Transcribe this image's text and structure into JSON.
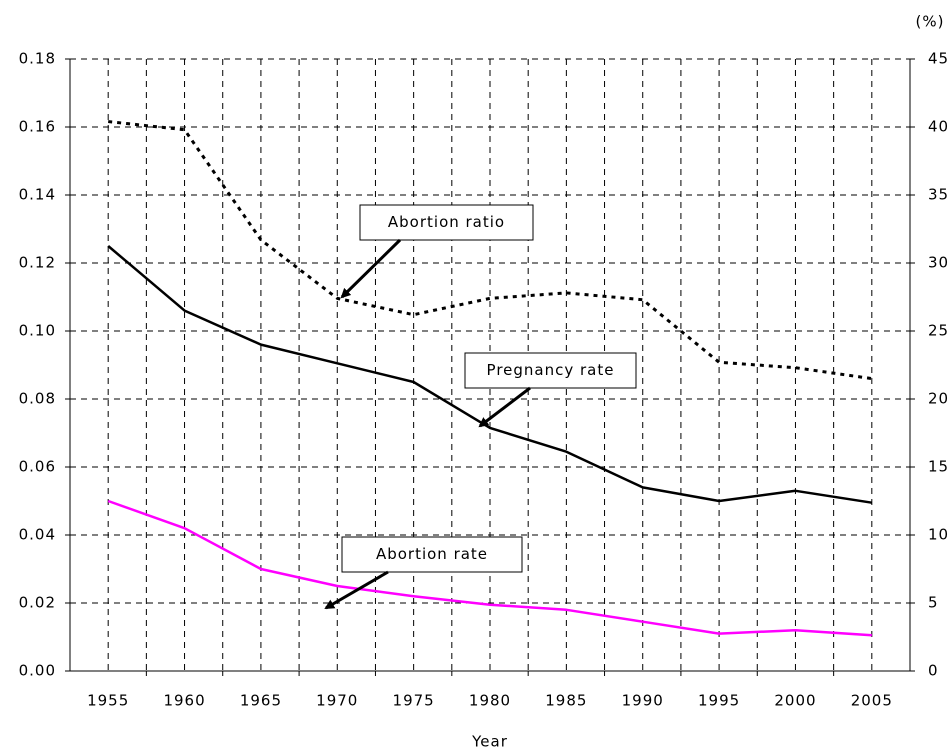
{
  "chart_data": {
    "type": "line",
    "x_label": "Year",
    "y2_label": "(%)",
    "categories": [
      "1955",
      "1960",
      "1965",
      "1970",
      "1975",
      "1980",
      "1985",
      "1990",
      "1995",
      "2000",
      "2005"
    ],
    "series": [
      {
        "name": "Pregnancy rate",
        "color": "#000000",
        "style": "solid",
        "axis": "y",
        "values": [
          0.125,
          0.106,
          0.096,
          0.0905,
          0.085,
          0.0715,
          0.0645,
          0.054,
          0.05,
          0.053,
          0.0495
        ]
      },
      {
        "name": "Abortion rate",
        "color": "#ff00ff",
        "style": "solid",
        "axis": "y",
        "values": [
          0.05,
          0.042,
          0.03,
          0.025,
          0.022,
          0.0195,
          0.018,
          0.0145,
          0.011,
          0.012,
          0.0105
        ]
      },
      {
        "name": "Abortion ratio",
        "color": "#000000",
        "style": "dotted",
        "axis": "y2",
        "values": [
          40.4,
          39.8,
          31.7,
          27.4,
          26.2,
          27.4,
          27.8,
          27.3,
          22.7,
          22.3,
          21.5
        ]
      }
    ],
    "ylim": [
      0,
      0.18
    ],
    "yticks": [
      {
        "value": 0,
        "label": "0.00"
      },
      {
        "value": 0.02,
        "label": "0.02"
      },
      {
        "value": 0.04,
        "label": "0.04"
      },
      {
        "value": 0.06,
        "label": "0.06"
      },
      {
        "value": 0.08,
        "label": "0.08"
      },
      {
        "value": 0.1,
        "label": "0.10"
      },
      {
        "value": 0.12,
        "label": "0.12"
      },
      {
        "value": 0.14,
        "label": "0.14"
      },
      {
        "value": 0.16,
        "label": "0.16"
      },
      {
        "value": 0.18,
        "label": "0.18"
      }
    ],
    "y2lim": [
      0,
      45
    ],
    "y2ticks": [
      0,
      5,
      10,
      15,
      20,
      25,
      30,
      35,
      40,
      45
    ],
    "grid": true,
    "annotations": [
      "Abortion ratio",
      "Pregnancy rate",
      "Abortion rate"
    ]
  }
}
